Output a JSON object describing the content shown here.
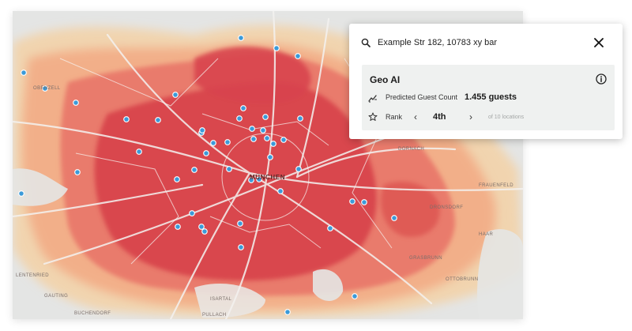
{
  "colors": {
    "heat_high": "#d8444c",
    "heat_mid": "#e9786a",
    "heat_low": "#f2a983",
    "heat_faint": "#f6cf9d",
    "map_base": "#e4e5e4",
    "marker": "#3b9ad9"
  },
  "map": {
    "place_labels": {
      "obenzell": "OBENZELL",
      "gauting": "GAUTING",
      "buchendorf": "BUCHENDORF",
      "pullach": "PULLACH",
      "isartal": "ISARTAL",
      "ottobrunn": "OTTOBRUNN",
      "dornach": "DORNACH",
      "dronsdorf": "DRONSDORF",
      "frauenfeld": "FRAUENFELD",
      "lentenried": "LENTENRIED",
      "haar": "HAAR",
      "grasbrunn": "GRASBRUNN",
      "city": "MÜNCHEN"
    },
    "markers_icon": "location-pin-dot"
  },
  "search": {
    "value": "Example Str 182, 10783 xy bar",
    "icon": "search-icon",
    "close_icon": "close-icon"
  },
  "panel": {
    "title": "Geo AI",
    "info_icon": "info-icon",
    "guest_label": "Predicted Guest Count",
    "guest_value": "1.455 guests",
    "guest_icon": "chart-trend-icon",
    "rank_label": "Rank",
    "rank_icon": "star-icon",
    "rank_value": "4th",
    "rank_prev": "‹",
    "rank_next": "›",
    "rank_total": "of 10 locations"
  }
}
